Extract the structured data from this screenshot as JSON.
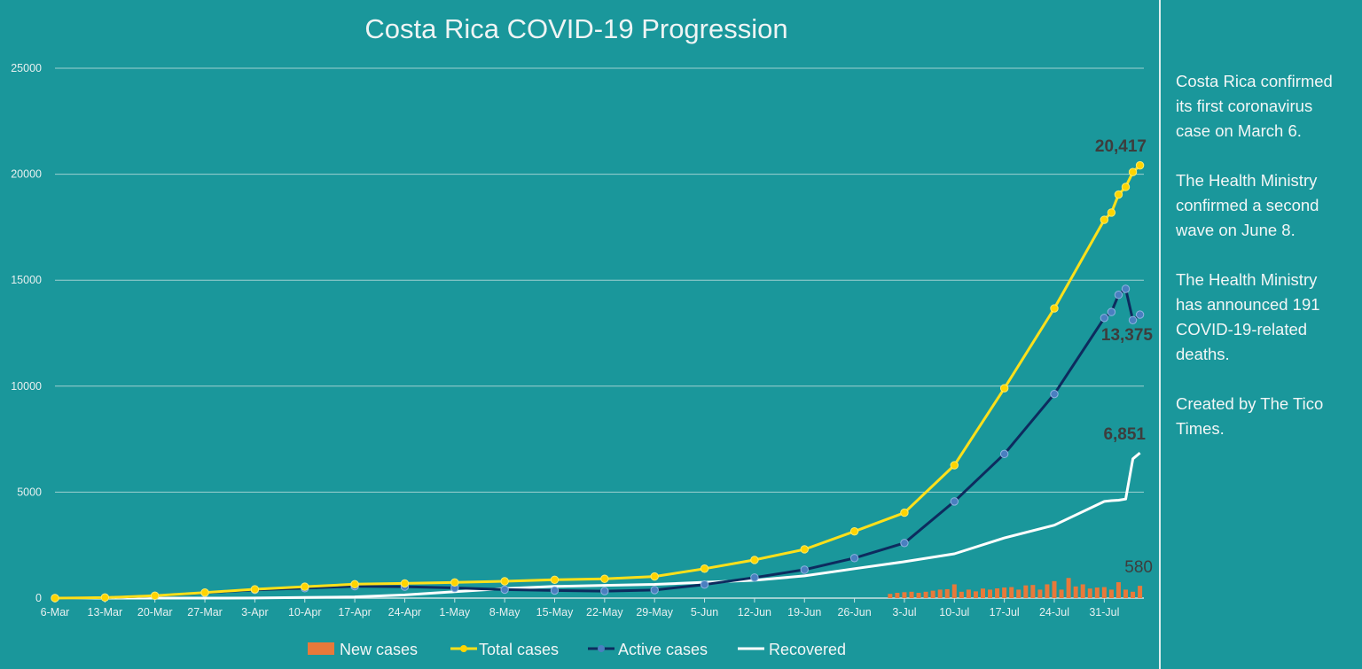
{
  "chart_data": {
    "type": "line",
    "title": "Costa Rica COVID-19 Progression",
    "xlabel": "",
    "ylabel": "",
    "ylim": [
      0,
      25000
    ],
    "yticks": [
      "0",
      "5000",
      "10000",
      "15000",
      "20000",
      "25000"
    ],
    "xticks": [
      "6-Mar",
      "13-Mar",
      "20-Mar",
      "27-Mar",
      "3-Apr",
      "10-Apr",
      "17-Apr",
      "24-Apr",
      "1-May",
      "8-May",
      "15-May",
      "22-May",
      "29-May",
      "5-Jun",
      "12-Jun",
      "19-Jun",
      "26-Jun",
      "3-Jul",
      "10-Jul",
      "17-Jul",
      "24-Jul",
      "31-Jul"
    ],
    "grid": true,
    "legend_position": "bottom",
    "x": [
      "6-Mar",
      "13-Mar",
      "20-Mar",
      "27-Mar",
      "3-Apr",
      "10-Apr",
      "17-Apr",
      "24-Apr",
      "1-May",
      "8-May",
      "15-May",
      "22-May",
      "29-May",
      "5-Jun",
      "12-Jun",
      "19-Jun",
      "26-Jun",
      "3-Jul",
      "10-Jul",
      "17-Jul",
      "24-Jul",
      "31-Jul",
      "1-Aug",
      "2-Aug",
      "3-Aug",
      "4-Aug",
      "5-Aug"
    ],
    "series": [
      {
        "name": "Total cases",
        "kind": "line-markers",
        "color": "#ffe01a",
        "values": [
          1,
          27,
          113,
          263,
          416,
          539,
          655,
          693,
          739,
          794,
          866,
          911,
          1022,
          1390,
          1800,
          2300,
          3150,
          4030,
          6270,
          9900,
          13670,
          17850,
          18190,
          19040,
          19400,
          20100,
          20417
        ]
      },
      {
        "name": "Active cases",
        "kind": "line-markers",
        "color": "#0d2b5e",
        "marker_color": "#4a7fc0",
        "values": [
          1,
          27,
          110,
          250,
          390,
          470,
          560,
          540,
          480,
          400,
          360,
          330,
          380,
          640,
          970,
          1340,
          1890,
          2600,
          4560,
          6800,
          9630,
          13220,
          13500,
          14310,
          14590,
          13115,
          13375
        ]
      },
      {
        "name": "Recovered",
        "kind": "line",
        "color": "#ffffff",
        "values": [
          0,
          0,
          0,
          0,
          4,
          30,
          60,
          150,
          300,
          450,
          550,
          600,
          650,
          750,
          840,
          1050,
          1390,
          1720,
          2090,
          2840,
          3440,
          4560,
          4600,
          4620,
          4675,
          6570,
          6851
        ]
      }
    ],
    "new_cases": {
      "name": "New cases",
      "kind": "bar",
      "color": "#e8793a",
      "x": [
        "1-Jul",
        "2-Jul",
        "3-Jul",
        "4-Jul",
        "5-Jul",
        "6-Jul",
        "7-Jul",
        "8-Jul",
        "9-Jul",
        "10-Jul",
        "11-Jul",
        "12-Jul",
        "13-Jul",
        "14-Jul",
        "15-Jul",
        "16-Jul",
        "17-Jul",
        "18-Jul",
        "19-Jul",
        "20-Jul",
        "21-Jul",
        "22-Jul",
        "23-Jul",
        "24-Jul",
        "25-Jul",
        "26-Jul",
        "27-Jul",
        "28-Jul",
        "29-Jul",
        "30-Jul",
        "31-Jul",
        "1-Aug",
        "2-Aug",
        "3-Aug",
        "4-Aug",
        "5-Aug"
      ],
      "values": [
        200,
        250,
        280,
        300,
        250,
        300,
        350,
        400,
        420,
        650,
        300,
        400,
        320,
        450,
        400,
        460,
        500,
        520,
        400,
        600,
        620,
        400,
        650,
        800,
        400,
        950,
        550,
        650,
        450,
        500,
        520,
        400,
        750,
        400,
        300,
        580
      ]
    },
    "annotations": {
      "total": "20,417",
      "active": "13,375",
      "recovered": "6,851",
      "new": "580"
    }
  },
  "legend": [
    "New cases",
    "Total cases",
    "Active cases",
    "Recovered"
  ],
  "sidebar": {
    "paragraphs": [
      [
        "Costa Rica confirmed",
        "its first coronavirus",
        "case on March 6."
      ],
      [
        "The Health Ministry",
        "confirmed a second",
        "wave on June 8."
      ],
      [
        "The Health Ministry",
        "has announced 191",
        "COVID-19-related",
        "deaths."
      ],
      [
        "Created by The Tico",
        "Times."
      ]
    ]
  }
}
